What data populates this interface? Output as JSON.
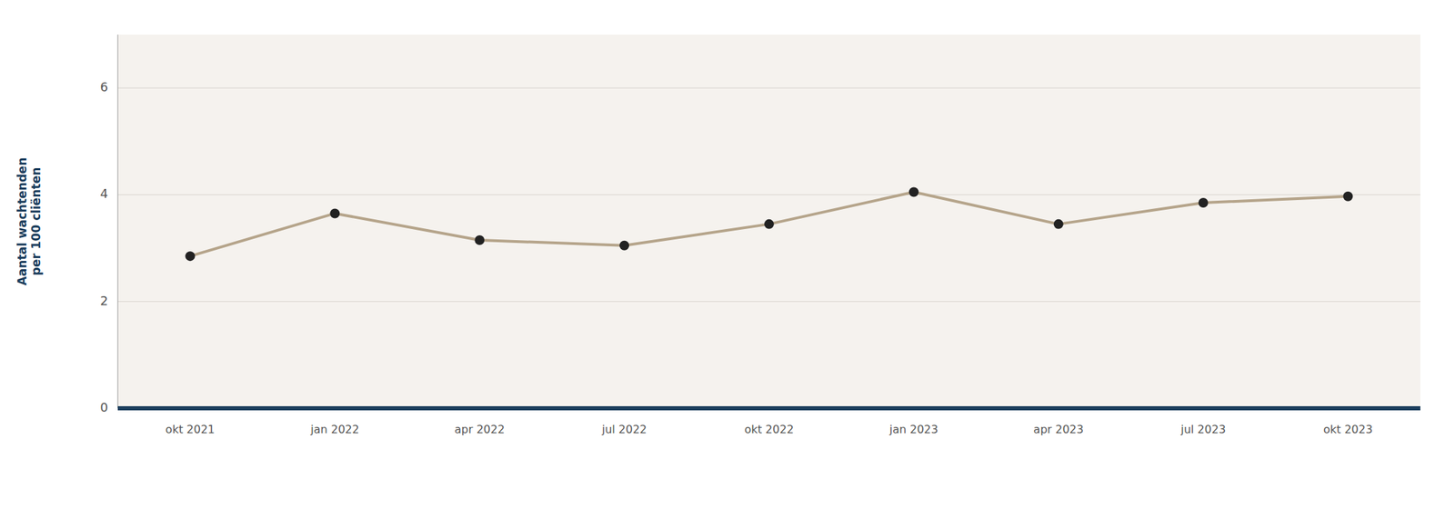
{
  "chart_data": {
    "type": "line",
    "y_label": "Aantal wachtenden\nper 100 cliënten",
    "categories": [
      "okt 2021",
      "jan 2022",
      "apr 2022",
      "jul 2022",
      "okt 2022",
      "jan 2023",
      "apr 2023",
      "jul 2023",
      "okt 2023"
    ],
    "values": [
      2.85,
      3.65,
      3.15,
      3.05,
      3.45,
      4.05,
      3.45,
      3.85,
      3.97
    ],
    "color": "#b5a48a",
    "marker": "circle",
    "ylim": [
      0,
      7.0
    ],
    "yticks": [
      0,
      2,
      4,
      6
    ],
    "grid": true
  }
}
